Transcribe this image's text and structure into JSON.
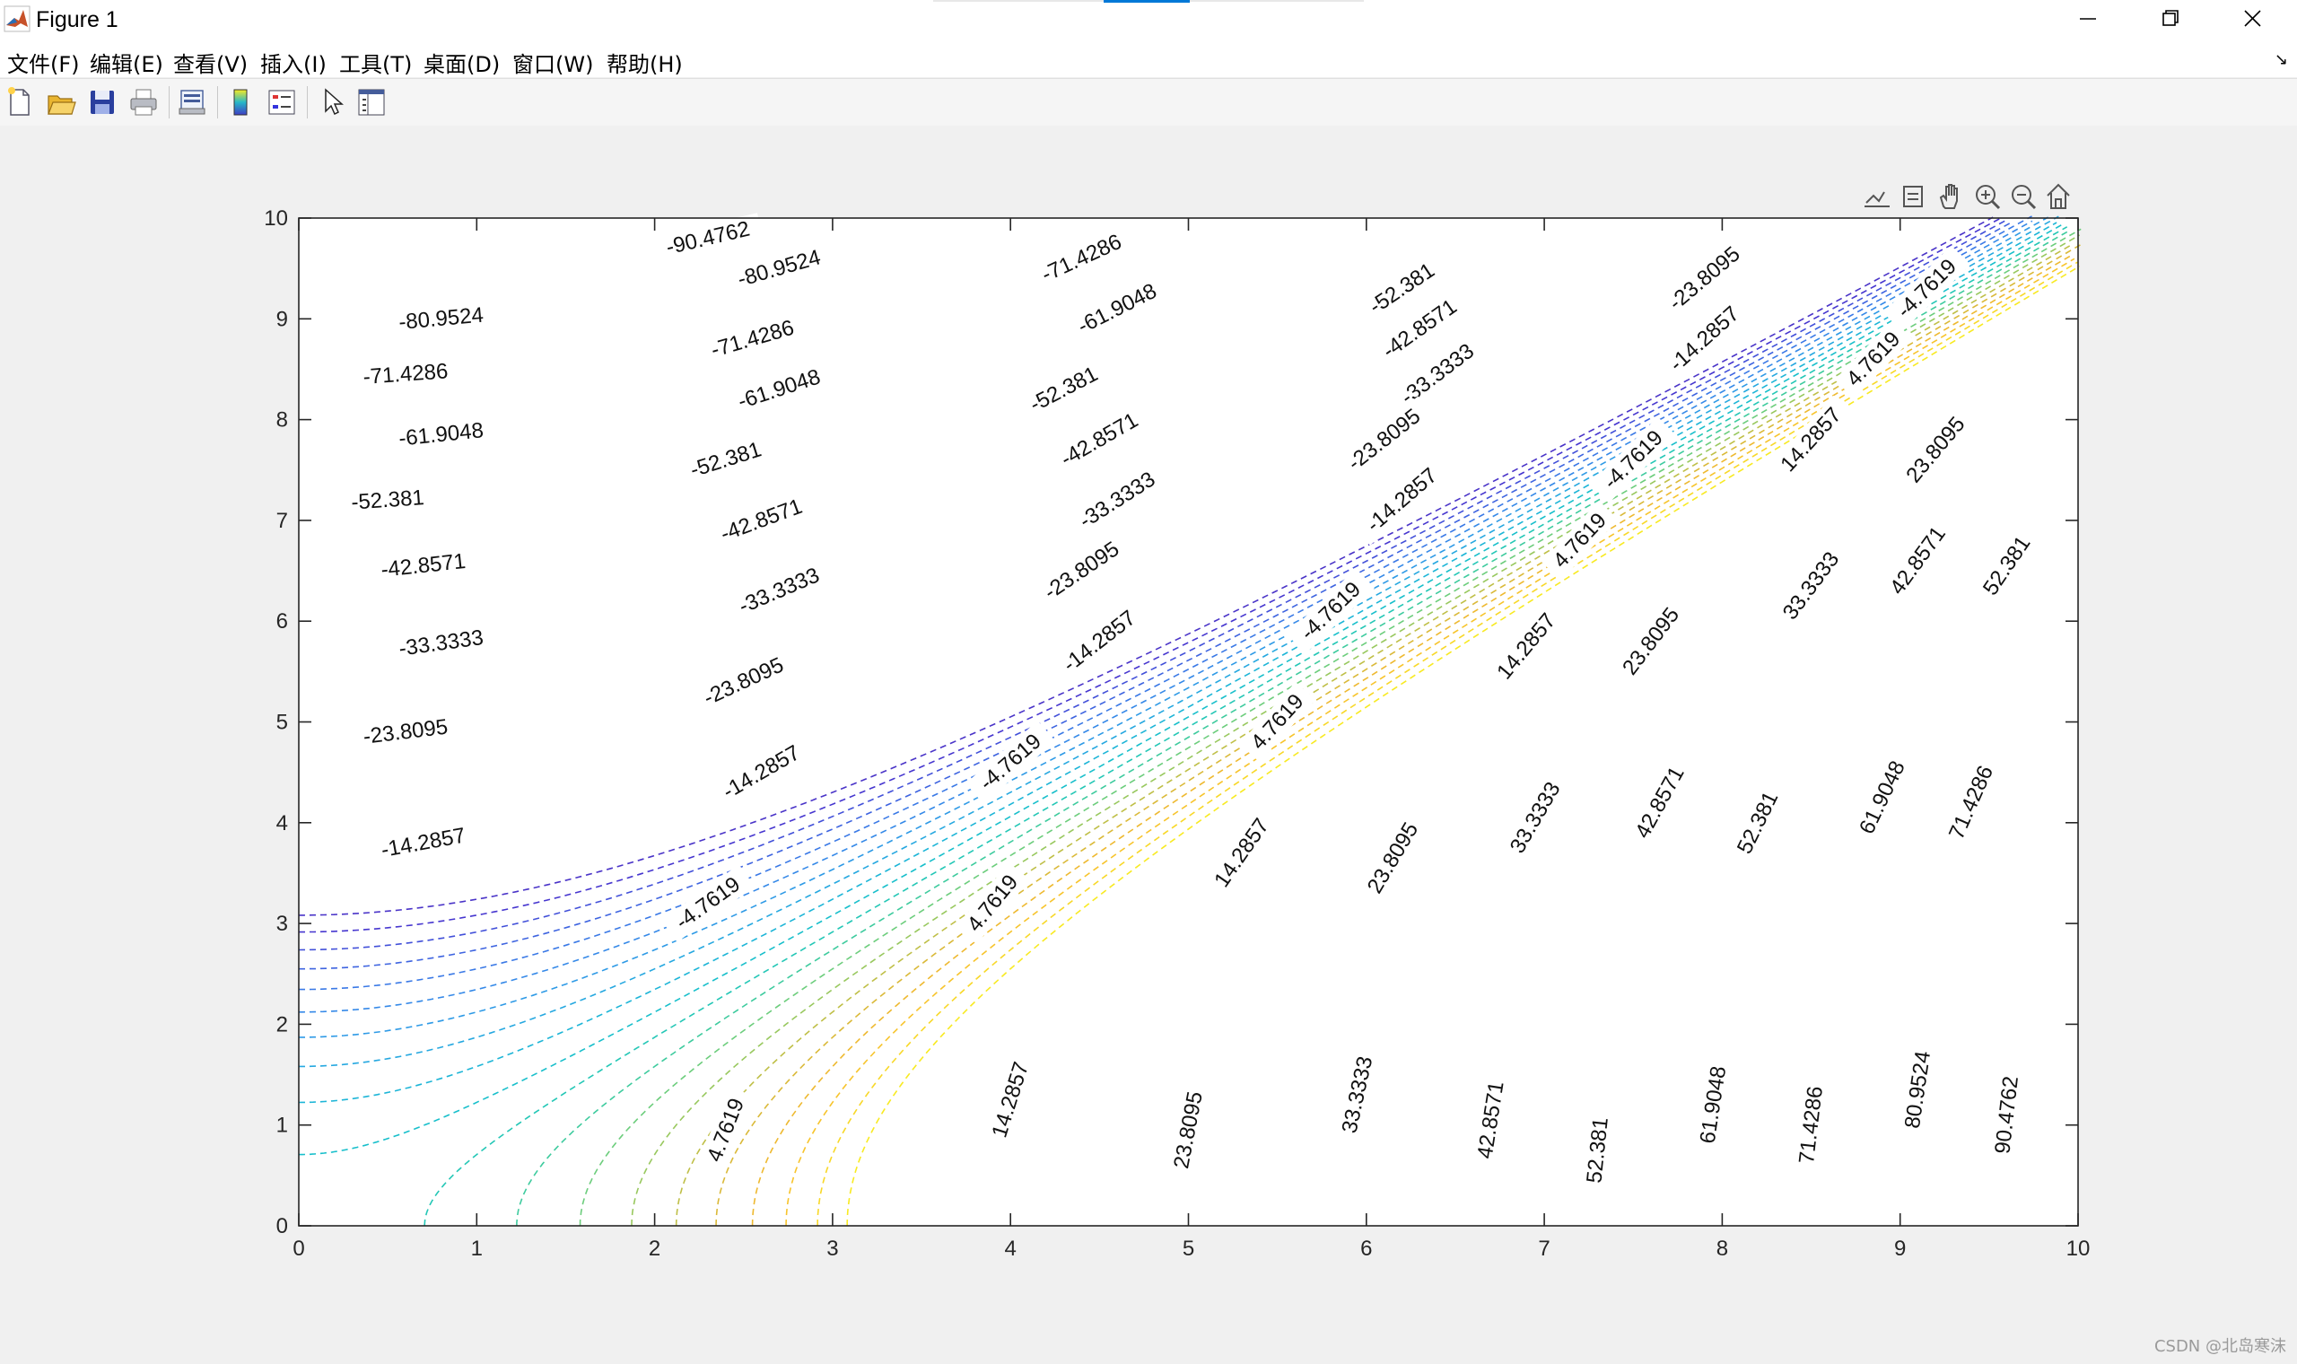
{
  "window": {
    "title": "Figure 1"
  },
  "menu": [
    "文件(F)",
    "编辑(E)",
    "查看(V)",
    "插入(I)",
    "工具(T)",
    "桌面(D)",
    "窗口(W)",
    "帮助(H)"
  ],
  "toolbar_icons": [
    "new-figure-icon",
    "open-file-icon",
    "save-icon",
    "print-icon",
    "print-preview-icon",
    "colorbar-icon",
    "legend-icon",
    "pointer-icon",
    "property-inspector-icon"
  ],
  "axes_toolbar_icons": [
    "brush-icon",
    "data-tip-icon",
    "pan-icon",
    "zoom-in-icon",
    "zoom-out-icon",
    "home-icon"
  ],
  "watermark": "CSDN @北岛寒沫",
  "chart_data": {
    "type": "contour",
    "xlim": [
      0,
      10
    ],
    "ylim": [
      0,
      10
    ],
    "xticks": [
      0,
      1,
      2,
      3,
      4,
      5,
      6,
      7,
      8,
      9,
      10
    ],
    "yticks": [
      0,
      1,
      2,
      3,
      4,
      5,
      6,
      7,
      8,
      9,
      10
    ],
    "line_style": "dashed",
    "colormap": "parula",
    "levels": [
      {
        "value": -90.4762,
        "label": "-90.4762",
        "color": "#4a34c8",
        "label_at": [
          [
            2.3,
            9.8
          ]
        ]
      },
      {
        "value": -80.9524,
        "label": "-80.9524",
        "color": "#4636cf",
        "label_at": [
          [
            0.8,
            9.0
          ],
          [
            2.7,
            9.5
          ]
        ]
      },
      {
        "value": -71.4286,
        "label": "-71.4286",
        "color": "#4250d9",
        "label_at": [
          [
            0.6,
            8.45
          ],
          [
            2.55,
            8.8
          ],
          [
            4.4,
            9.6
          ]
        ]
      },
      {
        "value": -61.9048,
        "label": "-61.9048",
        "color": "#3e64e0",
        "label_at": [
          [
            0.8,
            7.85
          ],
          [
            2.7,
            8.3
          ],
          [
            4.6,
            9.1
          ]
        ]
      },
      {
        "value": -52.381,
        "label": "-52.381",
        "color": "#3a79e6",
        "label_at": [
          [
            0.5,
            7.2
          ],
          [
            2.4,
            7.6
          ],
          [
            4.3,
            8.3
          ],
          [
            6.2,
            9.3
          ]
        ]
      },
      {
        "value": -42.8571,
        "label": "-42.8571",
        "color": "#3589e8",
        "label_at": [
          [
            0.7,
            6.55
          ],
          [
            2.6,
            7.0
          ],
          [
            4.5,
            7.8
          ],
          [
            6.3,
            8.9
          ]
        ]
      },
      {
        "value": -33.3333,
        "label": "-33.3333",
        "color": "#2e9ae6",
        "label_at": [
          [
            0.8,
            5.78
          ],
          [
            2.7,
            6.3
          ],
          [
            4.6,
            7.2
          ],
          [
            6.4,
            8.45
          ]
        ]
      },
      {
        "value": -23.8095,
        "label": "-23.8095",
        "color": "#26a8e0",
        "label_at": [
          [
            0.6,
            4.9
          ],
          [
            2.5,
            5.4
          ],
          [
            4.4,
            6.5
          ],
          [
            6.1,
            7.8
          ],
          [
            7.9,
            9.4
          ]
        ]
      },
      {
        "value": -14.2857,
        "label": "-14.2857",
        "color": "#1db5d7",
        "label_at": [
          [
            0.7,
            3.8
          ],
          [
            2.6,
            4.5
          ],
          [
            4.5,
            5.8
          ],
          [
            6.2,
            7.2
          ],
          [
            7.9,
            8.8
          ]
        ]
      },
      {
        "value": -4.7619,
        "label": "-4.7619",
        "color": "#18bfcb",
        "label_at": [
          [
            2.3,
            3.2
          ],
          [
            4.0,
            4.6
          ],
          [
            5.8,
            6.1
          ],
          [
            7.5,
            7.6
          ],
          [
            9.15,
            9.3
          ]
        ]
      },
      {
        "value": 4.7619,
        "label": "4.7619",
        "color": "#24c7b6",
        "label_at": [
          [
            2.4,
            0.95
          ],
          [
            3.9,
            3.2
          ],
          [
            5.5,
            5.0
          ],
          [
            7.2,
            6.8
          ],
          [
            8.85,
            8.6
          ]
        ]
      },
      {
        "value": 14.2857,
        "label": "14.2857",
        "color": "#3ecb9e",
        "label_at": [
          [
            4.0,
            1.25
          ],
          [
            5.3,
            3.7
          ],
          [
            6.9,
            5.75
          ],
          [
            8.5,
            7.8
          ]
        ]
      },
      {
        "value": 23.8095,
        "label": "23.8095",
        "color": "#6ccd7c",
        "label_at": [
          [
            5.0,
            0.95
          ],
          [
            6.15,
            3.65
          ],
          [
            7.6,
            5.8
          ],
          [
            9.2,
            7.7
          ]
        ]
      },
      {
        "value": 33.3333,
        "label": "33.3333",
        "color": "#98c85e",
        "label_at": [
          [
            5.95,
            1.3
          ],
          [
            6.95,
            4.05
          ],
          [
            8.5,
            6.35
          ]
        ]
      },
      {
        "value": 42.8571,
        "label": "42.8571",
        "color": "#bfbf47",
        "label_at": [
          [
            6.7,
            1.05
          ],
          [
            7.65,
            4.2
          ],
          [
            9.1,
            6.6
          ]
        ]
      },
      {
        "value": 52.381,
        "label": "52.381",
        "color": "#dab938",
        "label_at": [
          [
            7.3,
            0.75
          ],
          [
            8.2,
            4.0
          ],
          [
            9.6,
            6.55
          ]
        ]
      },
      {
        "value": 61.9048,
        "label": "61.9048",
        "color": "#eeb930",
        "label_at": [
          [
            7.95,
            1.2
          ],
          [
            8.9,
            4.25
          ]
        ]
      },
      {
        "value": 71.4286,
        "label": "71.4286",
        "color": "#f7c42c",
        "label_at": [
          [
            8.5,
            1.0
          ],
          [
            9.4,
            4.2
          ]
        ]
      },
      {
        "value": 80.9524,
        "label": "80.9524",
        "color": "#f8d828",
        "label_at": [
          [
            9.1,
            1.35
          ]
        ]
      },
      {
        "value": 90.4762,
        "label": "90.4762",
        "color": "#f8ea22",
        "label_at": [
          [
            9.6,
            1.1
          ]
        ]
      }
    ]
  }
}
